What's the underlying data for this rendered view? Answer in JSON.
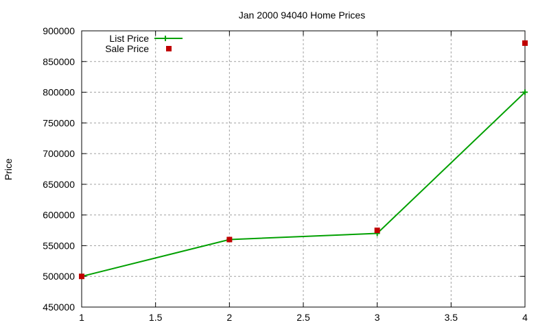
{
  "chart_data": {
    "type": "line",
    "title": "Jan 2000 94040 Home Prices",
    "xlabel": "",
    "ylabel": "Price",
    "xlim": [
      1,
      4
    ],
    "ylim": [
      450000,
      900000
    ],
    "x_ticks": [
      "1",
      "1.5",
      "2",
      "2.5",
      "3",
      "3.5",
      "4"
    ],
    "y_ticks": [
      "450000",
      "500000",
      "550000",
      "600000",
      "650000",
      "700000",
      "750000",
      "800000",
      "850000",
      "900000"
    ],
    "grid": true,
    "legend_position": "top-left",
    "x": [
      1,
      2,
      3,
      4
    ],
    "series": [
      {
        "name": "List Price",
        "style": "linespoints",
        "marker": "plus",
        "color": "#00a000",
        "values": [
          500000,
          560000,
          570000,
          800000
        ]
      },
      {
        "name": "Sale Price",
        "style": "points",
        "marker": "square",
        "color": "#c00000",
        "values": [
          500000,
          560000,
          575000,
          880000
        ]
      }
    ]
  }
}
